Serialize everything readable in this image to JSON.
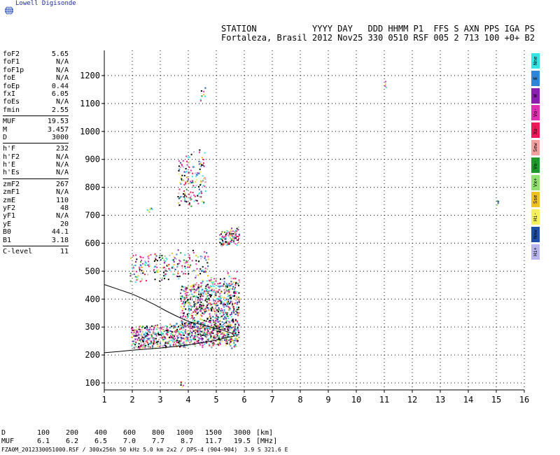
{
  "logo": {
    "text": "Lowell Digisonde"
  },
  "header": {
    "line1": "STATION           YYYY DAY   DDD HHMM P1  FFS S AXN PPS IGA PS",
    "line2": "Fortaleza, Brasil 2012 Nov25 330 0510 RSF 005 2 713 100 +0+ B2"
  },
  "params": [
    [
      [
        "foF2",
        "5.65"
      ],
      [
        "foF1",
        "N/A"
      ],
      [
        "foF1p",
        "N/A"
      ],
      [
        "foE",
        "N/A"
      ],
      [
        "foEp",
        "0.44"
      ],
      [
        "fxI",
        "6.05"
      ],
      [
        "foEs",
        "N/A"
      ],
      [
        "fmin",
        "2.55"
      ]
    ],
    [
      [
        "MUF",
        "19.53"
      ],
      [
        "M",
        "3.457"
      ],
      [
        "D",
        "3000"
      ]
    ],
    [
      [
        "h'F",
        "232"
      ],
      [
        "h'F2",
        "N/A"
      ],
      [
        "h'E",
        "N/A"
      ],
      [
        "h'Es",
        "N/A"
      ]
    ],
    [
      [
        "zmF2",
        "267"
      ],
      [
        "zmF1",
        "N/A"
      ],
      [
        "zmE",
        "110"
      ],
      [
        "yF2",
        "48"
      ],
      [
        "yF1",
        "N/A"
      ],
      [
        "yE",
        "20"
      ],
      [
        "B0",
        "44.1"
      ],
      [
        "B1",
        "3.18"
      ]
    ],
    [
      [
        "C-level",
        "11"
      ]
    ]
  ],
  "legend": [
    {
      "label": "Nne",
      "color": "#33e5e5"
    },
    {
      "label": "E",
      "color": "#2f86d6"
    },
    {
      "label": "W",
      "color": "#8b1fb0"
    },
    {
      "label": "Vo-",
      "color": "#e02fb0"
    },
    {
      "label": "Xo-",
      "color": "#f01a5a"
    },
    {
      "label": "Sew",
      "color": "#f3a0a0"
    },
    {
      "label": "Vo-",
      "color": "#1f9a2a"
    },
    {
      "label": "Vx+",
      "color": "#8fe070"
    },
    {
      "label": "Sse",
      "color": "#f0c020"
    },
    {
      "label": "Hi-",
      "color": "#f5f060"
    },
    {
      "label": "Nnw",
      "color": "#1e50a8"
    },
    {
      "label": "Hi+",
      "color": "#b8b4ee"
    }
  ],
  "muf_table": {
    "d_label": "D",
    "d_values": [
      "100",
      "200",
      "400",
      "600",
      "800",
      "1000",
      "1500",
      "3000"
    ],
    "d_unit": "[km]",
    "muf_label": "MUF",
    "muf_values": [
      "6.1",
      "6.2",
      "6.5",
      "7.0",
      "7.7",
      "8.7",
      "11.7",
      "19.5"
    ],
    "muf_unit": "[MHz]"
  },
  "footer": "FZA0M_2012330051000.RSF / 300x256h 50 kHz 5.0 km 2x2 / DPS-4 (904-904)  3.9 S 321.6 E",
  "chart_data": {
    "type": "scatter",
    "xlim": [
      1,
      16
    ],
    "ylim": [
      75,
      1290
    ],
    "x_ticks": [
      1,
      2,
      3,
      4,
      5,
      6,
      7,
      8,
      9,
      10,
      11,
      12,
      13,
      14,
      15,
      16
    ],
    "y_ticks": [
      100,
      200,
      300,
      400,
      500,
      600,
      700,
      800,
      900,
      1000,
      1100,
      1200
    ],
    "grid": "dotted",
    "profile_curve": [
      [
        1,
        208
      ],
      [
        1.5,
        212
      ],
      [
        2,
        217
      ],
      [
        2.5,
        221
      ],
      [
        3,
        225
      ],
      [
        3.5,
        230
      ],
      [
        4,
        236
      ],
      [
        4.5,
        244
      ],
      [
        5,
        253
      ],
      [
        5.3,
        261
      ],
      [
        5.65,
        268
      ],
      [
        5.55,
        278
      ],
      [
        5.2,
        290
      ],
      [
        4.8,
        300
      ],
      [
        4.4,
        310
      ],
      [
        4.0,
        320
      ],
      [
        3.6,
        338
      ],
      [
        3.2,
        358
      ],
      [
        2.8,
        380
      ],
      [
        2.4,
        400
      ],
      [
        2.0,
        418
      ],
      [
        1.5,
        435
      ],
      [
        1,
        452
      ]
    ],
    "trace_regions": [
      {
        "f": [
          1.95,
          5.8
        ],
        "h": [
          225,
          330
        ],
        "n": 900
      },
      {
        "f": [
          3.7,
          5.8
        ],
        "h": [
          290,
          500
        ],
        "n": 700
      },
      {
        "f": [
          1.9,
          4.7
        ],
        "h": [
          460,
          590
        ],
        "n": 220
      },
      {
        "f": [
          5.1,
          5.8
        ],
        "h": [
          590,
          660
        ],
        "n": 120
      },
      {
        "f": [
          3.6,
          4.6
        ],
        "h": [
          730,
          960
        ],
        "n": 160
      },
      {
        "f": [
          2.5,
          2.7
        ],
        "h": [
          710,
          730
        ],
        "n": 8
      },
      {
        "f": [
          4.4,
          4.6
        ],
        "h": [
          1110,
          1180
        ],
        "n": 8
      },
      {
        "f": [
          3.7,
          3.8
        ],
        "h": [
          80,
          120
        ],
        "n": 6
      },
      {
        "f": [
          15.0,
          15.05
        ],
        "h": [
          735,
          760
        ],
        "n": 4
      },
      {
        "f": [
          11.0,
          11.05
        ],
        "h": [
          1120,
          1190
        ],
        "n": 4
      }
    ]
  }
}
